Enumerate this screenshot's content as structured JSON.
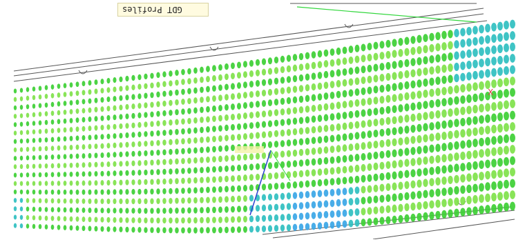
{
  "viewer": {
    "label_text": "GDT Profiles",
    "axis_x_label": "X",
    "colors": {
      "background": "#ffffff",
      "dot_green": "#3dcf34",
      "dot_light_green": "#7fe24a",
      "dot_cyan": "#2fbfc0",
      "dot_blue": "#3aa6e6",
      "outline": "#555555",
      "axis_green": "#2fd63a",
      "axis_blue": "#2b3fd1",
      "axis_red": "#e23a4a",
      "label_bg": "#fffbe0"
    }
  }
}
